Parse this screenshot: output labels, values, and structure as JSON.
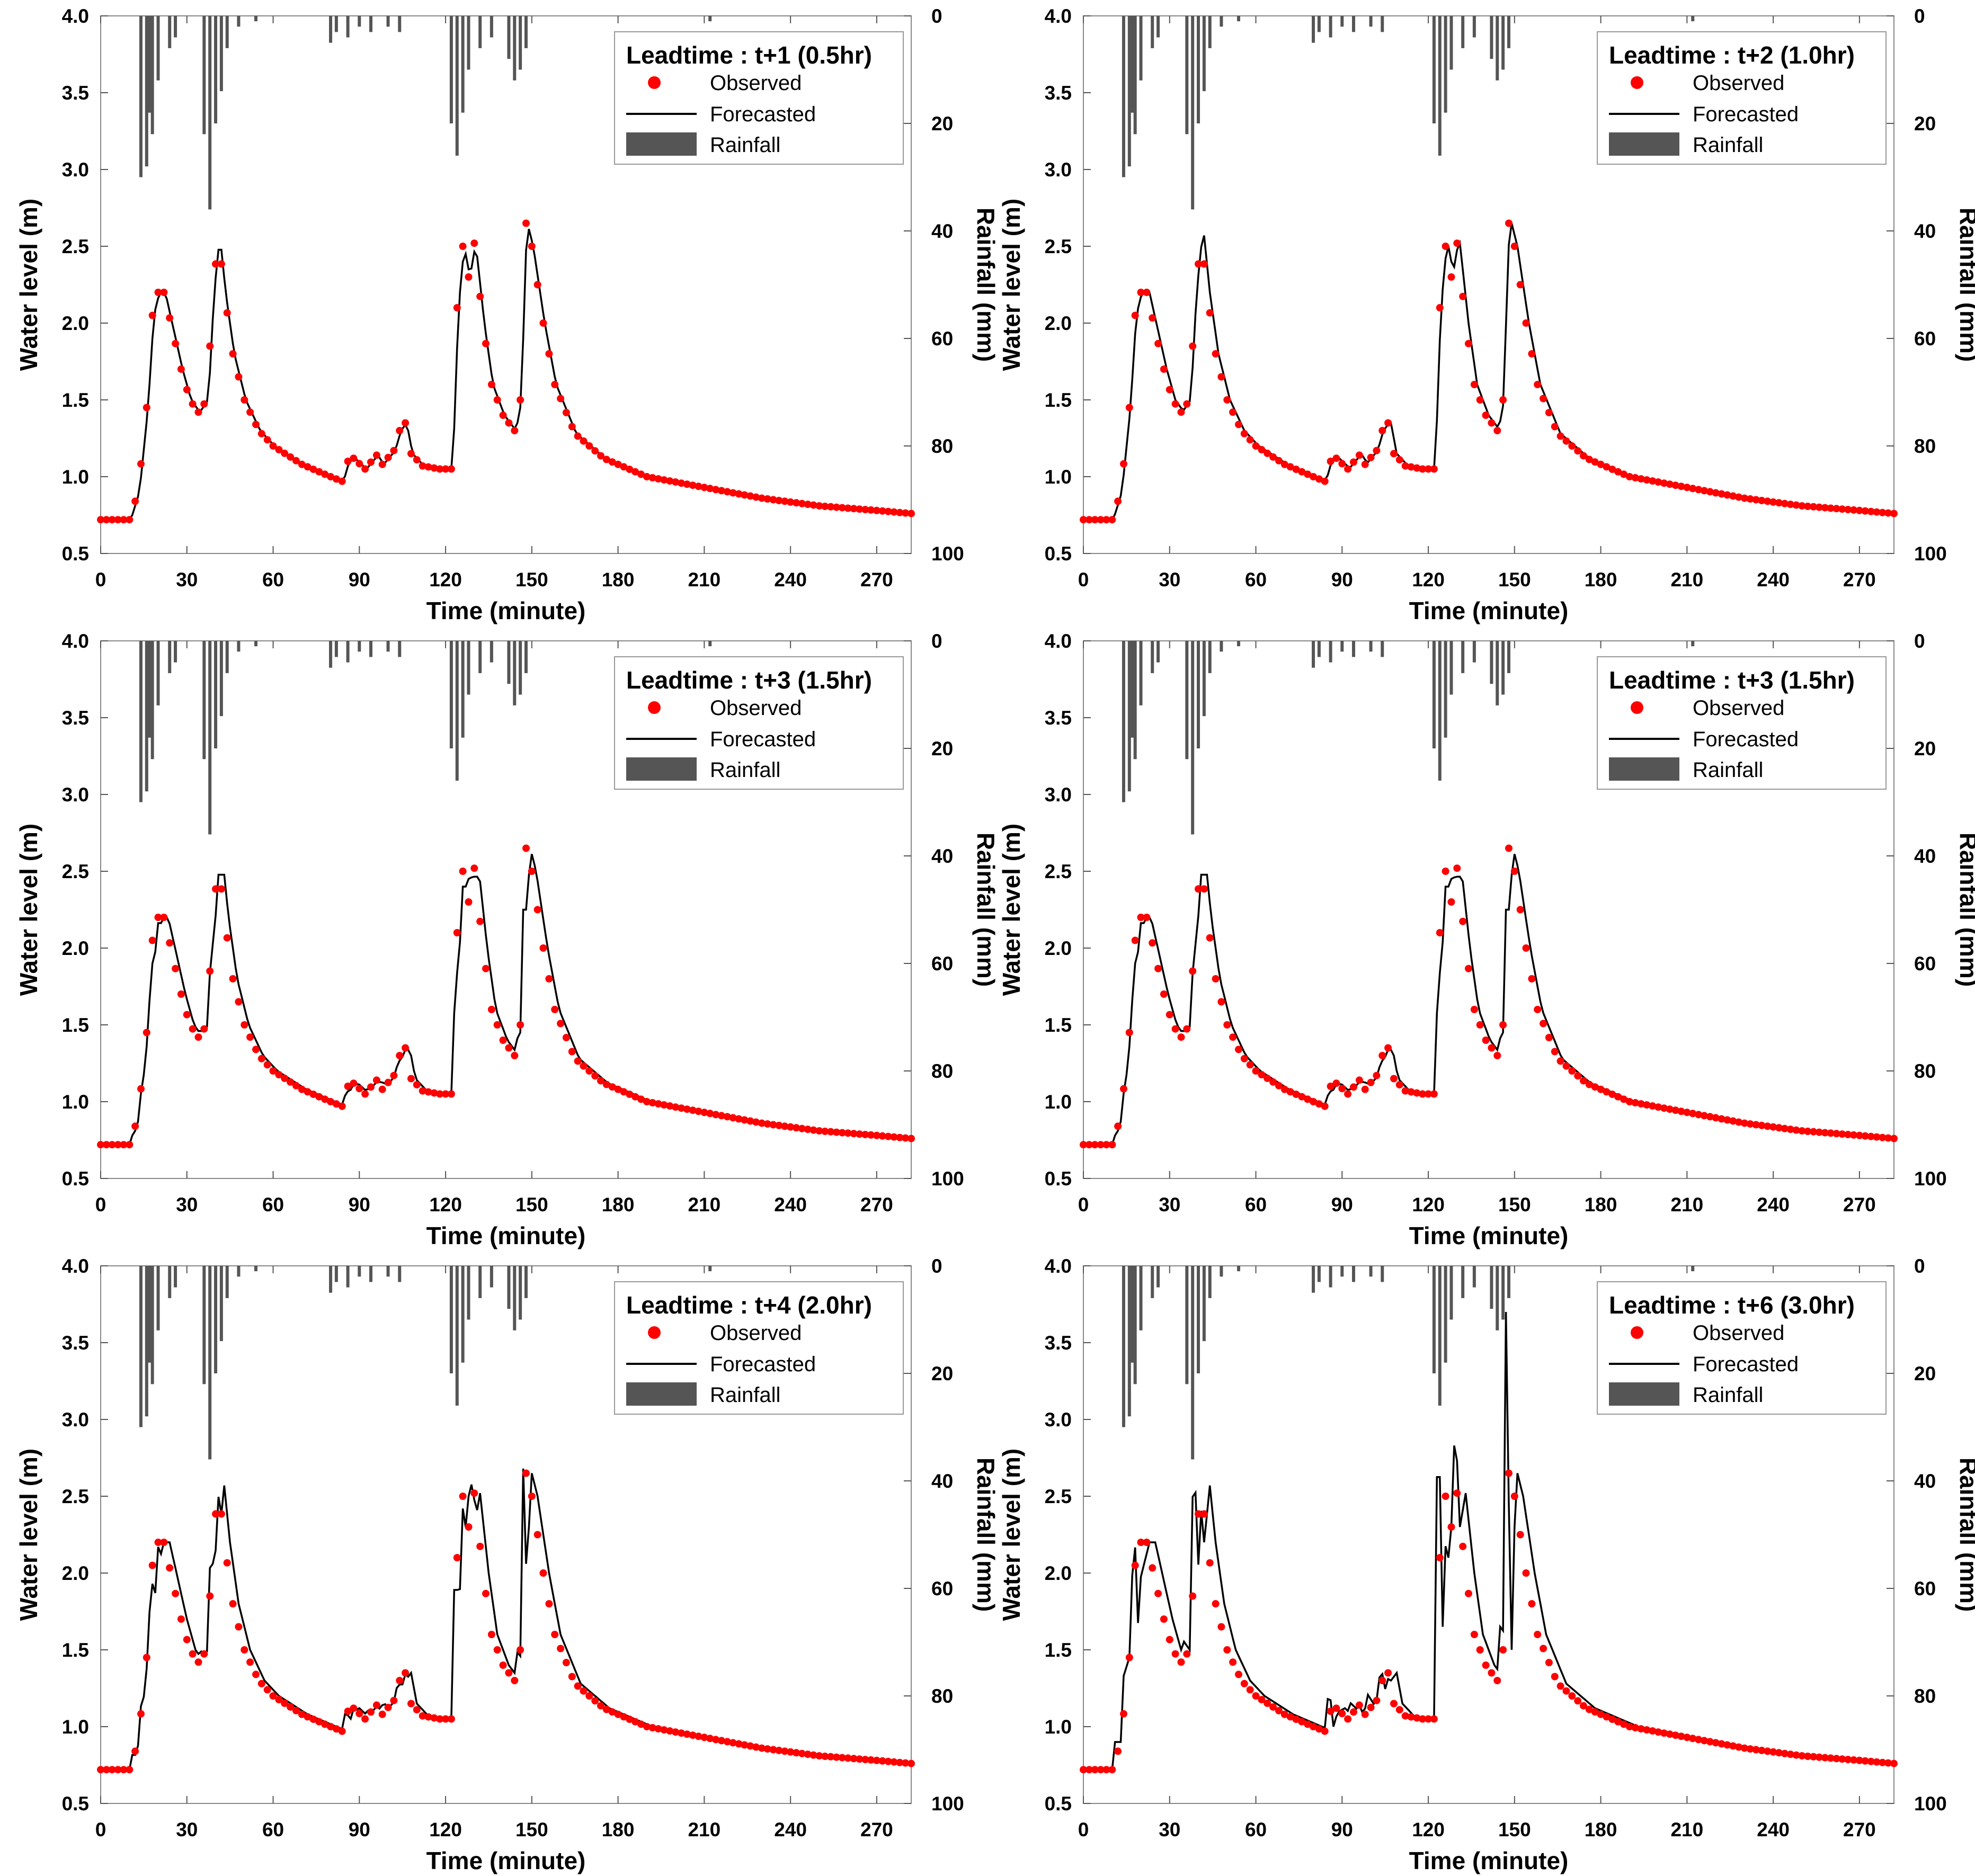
{
  "chart_data": [
    {
      "type": "line",
      "panel": 1,
      "legend_title": "Leadtime : t+1 (0.5hr)",
      "forecast_shift": 0.5,
      "overshoot": 0.0
    },
    {
      "type": "line",
      "panel": 2,
      "legend_title": "Leadtime : t+2 (1.0hr)",
      "forecast_shift": 1.0,
      "overshoot": 0.03
    },
    {
      "type": "line",
      "panel": 3,
      "legend_title": "Leadtime : t+3 (1.5hr)",
      "forecast_shift": 1.5,
      "overshoot": 0.05
    },
    {
      "type": "line",
      "panel": 4,
      "legend_title": "Leadtime : t+3 (1.5hr)",
      "forecast_shift": 1.5,
      "overshoot": 0.05
    },
    {
      "type": "line",
      "panel": 5,
      "legend_title": "Leadtime : t+4 (2.0hr)",
      "forecast_shift": 2.0,
      "overshoot": 0.08
    },
    {
      "type": "line",
      "panel": 6,
      "legend_title": "Leadtime : t+6 (3.0hr)",
      "forecast_shift": 3.0,
      "overshoot": 0.15
    }
  ],
  "shared": {
    "xlabel": "Time (minute)",
    "ylabel": "Water level (m)",
    "y2label": "Rainfall (mm)",
    "xlim": [
      0,
      282
    ],
    "ylim": [
      0.5,
      4.0
    ],
    "y2lim": [
      0,
      100
    ],
    "x_ticks": [
      "0",
      "30",
      "60",
      "90",
      "120",
      "150",
      "180",
      "210",
      "240",
      "270"
    ],
    "y_ticks": [
      "0.5",
      "1.0",
      "1.5",
      "2.0",
      "2.5",
      "3.0",
      "3.5",
      "4.0"
    ],
    "y2_ticks": [
      "0",
      "20",
      "40",
      "60",
      "80",
      "100"
    ],
    "legend": {
      "observed": "Observed",
      "forecasted": "Forecasted",
      "rainfall": "Rainfall"
    },
    "colors": {
      "observed": "#ff0000",
      "forecasted": "#000000",
      "rainfall": "#555555"
    },
    "observed_keypoints": [
      [
        0,
        0.72
      ],
      [
        10,
        0.72
      ],
      [
        13,
        0.9
      ],
      [
        16,
        1.45
      ],
      [
        18,
        2.05
      ],
      [
        20,
        2.2
      ],
      [
        22,
        2.2
      ],
      [
        25,
        1.95
      ],
      [
        28,
        1.7
      ],
      [
        31,
        1.5
      ],
      [
        34,
        1.42
      ],
      [
        37,
        1.5
      ],
      [
        39,
        2.2
      ],
      [
        41,
        2.57
      ],
      [
        43,
        2.2
      ],
      [
        46,
        1.8
      ],
      [
        50,
        1.5
      ],
      [
        55,
        1.3
      ],
      [
        60,
        1.2
      ],
      [
        70,
        1.08
      ],
      [
        80,
        1.0
      ],
      [
        84,
        0.97
      ],
      [
        86,
        1.1
      ],
      [
        88,
        1.12
      ],
      [
        92,
        1.05
      ],
      [
        96,
        1.14
      ],
      [
        98,
        1.08
      ],
      [
        102,
        1.17
      ],
      [
        104,
        1.3
      ],
      [
        106,
        1.35
      ],
      [
        108,
        1.15
      ],
      [
        112,
        1.07
      ],
      [
        118,
        1.05
      ],
      [
        122,
        1.05
      ],
      [
        124,
        2.1
      ],
      [
        126,
        2.5
      ],
      [
        128,
        2.3
      ],
      [
        130,
        2.52
      ],
      [
        133,
        2.0
      ],
      [
        136,
        1.6
      ],
      [
        140,
        1.4
      ],
      [
        144,
        1.3
      ],
      [
        146,
        1.5
      ],
      [
        147,
        2.3
      ],
      [
        148,
        2.65
      ],
      [
        150,
        2.5
      ],
      [
        154,
        2.0
      ],
      [
        158,
        1.6
      ],
      [
        165,
        1.28
      ],
      [
        175,
        1.12
      ],
      [
        190,
        1.0
      ],
      [
        210,
        0.93
      ],
      [
        230,
        0.86
      ],
      [
        250,
        0.81
      ],
      [
        270,
        0.78
      ],
      [
        282,
        0.76
      ]
    ],
    "rain_events": [
      [
        14,
        30
      ],
      [
        16,
        28
      ],
      [
        17,
        18
      ],
      [
        18,
        22
      ],
      [
        20,
        12
      ],
      [
        24,
        6
      ],
      [
        26,
        4
      ],
      [
        36,
        22
      ],
      [
        38,
        36
      ],
      [
        40,
        20
      ],
      [
        42,
        14
      ],
      [
        44,
        6
      ],
      [
        48,
        2
      ],
      [
        54,
        1
      ],
      [
        80,
        5
      ],
      [
        82,
        3
      ],
      [
        86,
        4
      ],
      [
        90,
        2
      ],
      [
        94,
        3
      ],
      [
        100,
        2
      ],
      [
        104,
        3
      ],
      [
        122,
        20
      ],
      [
        124,
        26
      ],
      [
        126,
        18
      ],
      [
        128,
        10
      ],
      [
        132,
        6
      ],
      [
        136,
        4
      ],
      [
        142,
        8
      ],
      [
        144,
        12
      ],
      [
        146,
        10
      ],
      [
        148,
        6
      ],
      [
        212,
        1
      ]
    ]
  }
}
